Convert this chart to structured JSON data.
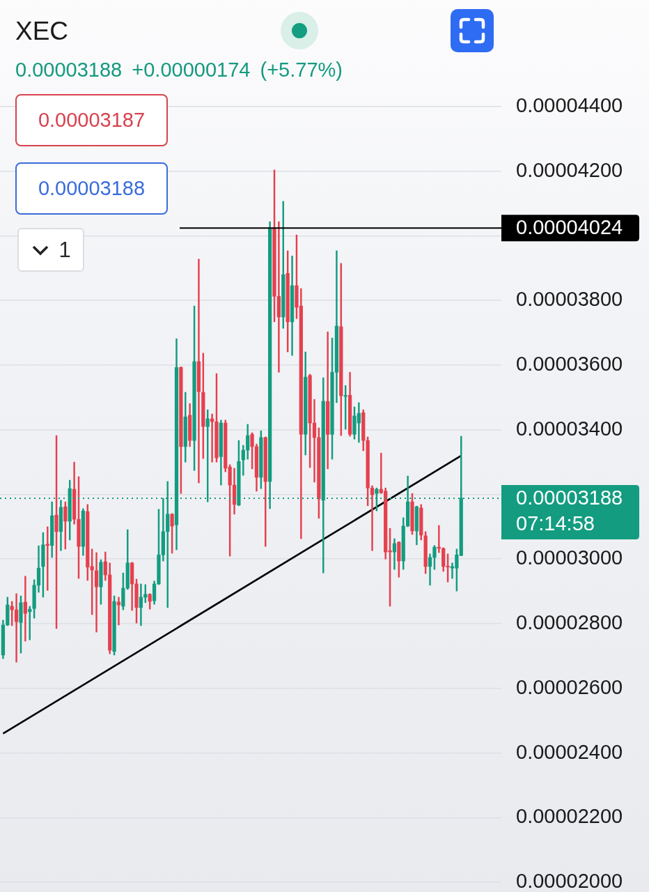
{
  "chart_data": {
    "type": "candlestick",
    "title": "XEC",
    "subtitle": "0.00003188 +0.00000174 (+5.77%)",
    "categories": [
      null,
      null,
      null,
      null,
      null,
      null,
      null,
      null,
      null,
      null,
      null,
      null,
      null,
      null,
      null,
      null,
      null,
      null,
      null,
      null,
      null,
      null,
      null,
      null,
      null,
      null,
      null,
      null,
      null,
      null,
      null,
      null,
      null,
      null,
      null,
      null,
      null,
      null,
      null,
      null,
      null,
      null,
      null,
      null,
      null,
      null,
      null,
      null,
      null,
      null,
      null,
      null,
      null,
      null,
      null,
      null,
      null,
      null,
      null,
      null,
      null,
      null,
      null,
      null,
      null,
      null,
      null,
      null,
      null,
      null,
      null,
      null,
      null,
      null,
      null,
      null,
      null,
      null,
      null,
      null,
      null,
      null,
      null,
      null,
      null,
      null,
      null,
      null,
      null,
      null,
      null,
      null,
      null,
      null,
      null,
      null,
      null,
      null,
      null,
      null,
      null,
      null,
      null,
      null
    ],
    "ohlc": [
      [
        2.703e-05,
        2.811e-05,
        2.692e-05,
        2.796e-05
      ],
      [
        2.796e-05,
        2.882e-05,
        2.794e-05,
        2.858e-05
      ],
      [
        2.854e-05,
        2.869e-05,
        2.794e-05,
        2.843e-05
      ],
      [
        2.843e-05,
        2.893e-05,
        2.681e-05,
        2.806e-05
      ],
      [
        2.804e-05,
        2.886e-05,
        2.709e-05,
        2.865e-05
      ],
      [
        2.867e-05,
        2.947e-05,
        2.746e-05,
        2.832e-05
      ],
      [
        2.837e-05,
        2.854e-05,
        2.75e-05,
        2.845e-05
      ],
      [
        2.847e-05,
        2.936e-05,
        2.817e-05,
        2.919e-05
      ],
      [
        2.919e-05,
        3.041e-05,
        2.897e-05,
        2.972e-05
      ],
      [
        2.977e-05,
        3.082e-05,
        2.882e-05,
        3.044e-05
      ],
      [
        3.046e-05,
        3.1e-05,
        2.903e-05,
        3.042e-05
      ],
      [
        3.042e-05,
        3.177e-05,
        3.005e-05,
        3.134e-05
      ],
      [
        3.136e-05,
        3.382e-05,
        2.785e-05,
        3.085e-05
      ],
      [
        3.085e-05,
        3.182e-05,
        3.026e-05,
        3.16e-05
      ],
      [
        3.162e-05,
        3.177e-05,
        3.031e-05,
        3.117e-05
      ],
      [
        3.117e-05,
        3.244e-05,
        3.059e-05,
        3.218e-05
      ],
      [
        3.216e-05,
        3.3e-05,
        3.108e-05,
        3.123e-05
      ],
      [
        3.123e-05,
        3.255e-05,
        2.94e-05,
        3.039e-05
      ],
      [
        3.039e-05,
        3.156e-05,
        3.011e-05,
        3.149e-05
      ],
      [
        3.147e-05,
        3.169e-05,
        2.934e-05,
        2.975e-05
      ],
      [
        2.977e-05,
        3.031e-05,
        2.828e-05,
        2.966e-05
      ],
      [
        2.964e-05,
        3.02e-05,
        2.774e-05,
        2.914e-05
      ],
      [
        2.914e-05,
        2.998e-05,
        2.86e-05,
        2.99e-05
      ],
      [
        2.992e-05,
        3.022e-05,
        2.934e-05,
        2.951e-05
      ],
      [
        2.951e-05,
        2.988e-05,
        2.707e-05,
        2.718e-05
      ],
      [
        2.714e-05,
        2.886e-05,
        2.703e-05,
        2.869e-05
      ],
      [
        2.867e-05,
        2.882e-05,
        2.796e-05,
        2.858e-05
      ],
      [
        2.854e-05,
        2.957e-05,
        2.843e-05,
        2.91e-05
      ],
      [
        2.91e-05,
        3.091e-05,
        2.906e-05,
        2.988e-05
      ],
      [
        2.988e-05,
        2.99e-05,
        2.841e-05,
        2.923e-05
      ],
      [
        2.923e-05,
        2.938e-05,
        2.802e-05,
        2.85e-05
      ],
      [
        2.85e-05,
        2.923e-05,
        2.794e-05,
        2.882e-05
      ],
      [
        2.882e-05,
        2.921e-05,
        2.865e-05,
        2.891e-05
      ],
      [
        2.891e-05,
        2.893e-05,
        2.845e-05,
        2.869e-05
      ],
      [
        2.871e-05,
        2.932e-05,
        2.86e-05,
        2.923e-05
      ],
      [
        2.923e-05,
        3.154e-05,
        2.921e-05,
        3.013e-05
      ],
      [
        3.013e-05,
        3.188e-05,
        2.994e-05,
        3.085e-05
      ],
      [
        3.085e-05,
        3.24e-05,
        2.85e-05,
        3.139e-05
      ],
      [
        3.139e-05,
        3.141e-05,
        3.018e-05,
        3.102e-05
      ],
      [
        3.106e-05,
        3.682e-05,
        3.029e-05,
        3.593e-05
      ],
      [
        3.593e-05,
        3.595e-05,
        3.203e-05,
        3.348e-05
      ],
      [
        3.348e-05,
        3.516e-05,
        3.3e-05,
        3.44e-05
      ],
      [
        3.445e-05,
        3.481e-05,
        3.348e-05,
        3.367e-05
      ],
      [
        3.367e-05,
        3.783e-05,
        3.274e-05,
        3.611e-05
      ],
      [
        3.611e-05,
        3.928e-05,
        3.236e-05,
        3.518e-05
      ],
      [
        3.516e-05,
        3.637e-05,
        3.311e-05,
        3.41e-05
      ],
      [
        3.41e-05,
        3.462e-05,
        3.177e-05,
        3.434e-05
      ],
      [
        3.434e-05,
        3.449e-05,
        3.3e-05,
        3.425e-05
      ],
      [
        3.425e-05,
        3.574e-05,
        3.3e-05,
        3.313e-05
      ],
      [
        3.317e-05,
        3.43e-05,
        3.229e-05,
        3.421e-05
      ],
      [
        3.421e-05,
        3.43e-05,
        3.27e-05,
        3.281e-05
      ],
      [
        3.285e-05,
        3.292e-05,
        3.009e-05,
        3.229e-05
      ],
      [
        3.229e-05,
        3.281e-05,
        3.139e-05,
        3.169e-05
      ],
      [
        3.167e-05,
        3.367e-05,
        3.165e-05,
        3.302e-05
      ],
      [
        3.307e-05,
        3.352e-05,
        3.259e-05,
        3.337e-05
      ],
      [
        3.337e-05,
        3.417e-05,
        3.309e-05,
        3.382e-05
      ],
      [
        3.386e-05,
        3.391e-05,
        3.279e-05,
        3.348e-05
      ],
      [
        3.348e-05,
        3.356e-05,
        3.21e-05,
        3.253e-05
      ],
      [
        3.253e-05,
        3.397e-05,
        3.218e-05,
        3.376e-05
      ],
      [
        3.376e-05,
        3.378e-05,
        3.039e-05,
        3.24e-05
      ],
      [
        3.24e-05,
        4.044e-05,
        3.156e-05,
        4.024e-05
      ],
      [
        4.024e-05,
        4.204e-05,
        3.734e-05,
        3.813e-05
      ],
      [
        3.813e-05,
        4.044e-05,
        3.578e-05,
        3.749e-05
      ],
      [
        3.749e-05,
        4.107e-05,
        3.714e-05,
        3.88e-05
      ],
      [
        3.884e-05,
        3.954e-05,
        3.641e-05,
        3.734e-05
      ],
      [
        3.734e-05,
        3.938e-05,
        3.63e-05,
        3.846e-05
      ],
      [
        3.846e-05,
        4.003e-05,
        3.744e-05,
        3.779e-05
      ],
      [
        3.783e-05,
        3.837e-05,
        3.063e-05,
        3.386e-05
      ],
      [
        3.386e-05,
        3.641e-05,
        3.322e-05,
        3.563e-05
      ],
      [
        3.568e-05,
        3.572e-05,
        3.283e-05,
        3.421e-05
      ],
      [
        3.421e-05,
        3.494e-05,
        3.238e-05,
        3.376e-05
      ],
      [
        3.376e-05,
        3.406e-05,
        3.126e-05,
        3.186e-05
      ],
      [
        3.182e-05,
        3.561e-05,
        2.957e-05,
        3.488e-05
      ],
      [
        3.488e-05,
        3.703e-05,
        3.279e-05,
        3.386e-05
      ],
      [
        3.386e-05,
        3.684e-05,
        3.309e-05,
        3.578e-05
      ],
      [
        3.578e-05,
        3.954e-05,
        3.484e-05,
        3.721e-05
      ],
      [
        3.719e-05,
        3.915e-05,
        3.382e-05,
        3.505e-05
      ],
      [
        3.503e-05,
        3.537e-05,
        3.402e-05,
        3.505e-05
      ],
      [
        3.507e-05,
        3.578e-05,
        3.38e-05,
        3.386e-05
      ],
      [
        3.386e-05,
        3.471e-05,
        3.371e-05,
        3.443e-05
      ],
      [
        3.421e-05,
        3.484e-05,
        3.361e-05,
        3.451e-05
      ],
      [
        3.453e-05,
        3.462e-05,
        3.335e-05,
        3.367e-05
      ],
      [
        3.367e-05,
        3.378e-05,
        3.165e-05,
        3.22e-05
      ],
      [
        3.22e-05,
        3.227e-05,
        3.026e-05,
        3.199e-05
      ],
      [
        3.203e-05,
        3.22e-05,
        3.149e-05,
        3.216e-05
      ],
      [
        3.216e-05,
        3.328e-05,
        3.203e-05,
        3.205e-05
      ],
      [
        3.21e-05,
        3.22e-05,
        3e-05,
        3.022e-05
      ],
      [
        3.026e-05,
        3.095e-05,
        2.854e-05,
        3.022e-05
      ],
      [
        3.022e-05,
        3.063e-05,
        2.968e-05,
        3.048e-05
      ],
      [
        3.052e-05,
        3.054e-05,
        2.944e-05,
        2.994e-05
      ],
      [
        2.994e-05,
        3.128e-05,
        2.968e-05,
        3.102e-05
      ],
      [
        3.102e-05,
        3.257e-05,
        3.1e-05,
        3.177e-05
      ],
      [
        3.177e-05,
        3.203e-05,
        3.076e-05,
        3.087e-05
      ],
      [
        3.087e-05,
        3.164e-05,
        3.044e-05,
        3.162e-05
      ],
      [
        3.158e-05,
        3.169e-05,
        3.059e-05,
        3.074e-05
      ],
      [
        3.072e-05,
        3.085e-05,
        2.955e-05,
        2.977e-05
      ],
      [
        2.977e-05,
        3.016e-05,
        2.919e-05,
        3.005e-05
      ],
      [
        3.005e-05,
        3.042e-05,
        2.968e-05,
        3.037e-05
      ],
      [
        3.037e-05,
        3.104e-05,
        3.02e-05,
        3.033e-05
      ],
      [
        3.033e-05,
        3.035e-05,
        2.962e-05,
        2.977e-05
      ],
      [
        2.977e-05,
        3.016e-05,
        2.929e-05,
        2.975e-05
      ],
      [
        2.972e-05,
        2.988e-05,
        2.94e-05,
        2.977e-05
      ],
      [
        2.972e-05,
        3.031e-05,
        2.901e-05,
        3.013e-05
      ],
      [
        3.011e-05,
        3.38e-05,
        3.01e-05,
        3.188e-05
      ]
    ],
    "colors": [
      "#139c80",
      "#139c80",
      "#e5404e",
      "#e5404e",
      "#139c80",
      "#e5404e",
      "#139c80",
      "#139c80",
      "#139c80",
      "#139c80",
      "#e5404e",
      "#139c80",
      "#e5404e",
      "#139c80",
      "#e5404e",
      "#139c80",
      "#e5404e",
      "#e5404e",
      "#139c80",
      "#e5404e",
      "#e5404e",
      "#e5404e",
      "#139c80",
      "#e5404e",
      "#e5404e",
      "#139c80",
      "#e5404e",
      "#139c80",
      "#139c80",
      "#e5404e",
      "#e5404e",
      "#139c80",
      "#139c80",
      "#e5404e",
      "#139c80",
      "#139c80",
      "#139c80",
      "#139c80",
      "#e5404e",
      "#139c80",
      "#e5404e",
      "#139c80",
      "#e5404e",
      "#139c80",
      "#e5404e",
      "#e5404e",
      "#139c80",
      "#e5404e",
      "#e5404e",
      "#139c80",
      "#e5404e",
      "#e5404e",
      "#e5404e",
      "#139c80",
      "#139c80",
      "#139c80",
      "#e5404e",
      "#e5404e",
      "#139c80",
      "#e5404e",
      "#139c80",
      "#e5404e",
      "#e5404e",
      "#139c80",
      "#e5404e",
      "#139c80",
      "#e5404e",
      "#e5404e",
      "#139c80",
      "#e5404e",
      "#e5404e",
      "#e5404e",
      "#139c80",
      "#e5404e",
      "#139c80",
      "#139c80",
      "#e5404e",
      "#139c80",
      "#e5404e",
      "#139c80",
      "#139c80",
      "#e5404e",
      "#e5404e",
      "#e5404e",
      "#139c80",
      "#e5404e",
      "#e5404e",
      "#e5404e",
      "#139c80",
      "#e5404e",
      "#139c80",
      "#139c80",
      "#e5404e",
      "#139c80",
      "#e5404e",
      "#e5404e",
      "#139c80",
      "#139c80",
      "#e5404e",
      "#e5404e",
      "#e5404e",
      "#139c80",
      "#139c80",
      "#139c80"
    ],
    "series": [
      {
        "type": "line",
        "color": "#000000",
        "values": [
          2.46e-05,
          null,
          null,
          null,
          null,
          null,
          null,
          null,
          null,
          null,
          null,
          null,
          null,
          null,
          null,
          null,
          null,
          null,
          null,
          null,
          null,
          null,
          null,
          null,
          null,
          null,
          null,
          null,
          null,
          null,
          null,
          null,
          null,
          null,
          null,
          null,
          null,
          null,
          null,
          null,
          null,
          null,
          null,
          null,
          null,
          null,
          null,
          null,
          null,
          null,
          null,
          null,
          null,
          null,
          null,
          null,
          null,
          null,
          null,
          null,
          null,
          null,
          null,
          null,
          null,
          null,
          null,
          null,
          null,
          null,
          null,
          null,
          null,
          null,
          null,
          null,
          null,
          null,
          null,
          null,
          null,
          null,
          null,
          null,
          null,
          null,
          null,
          null,
          null,
          null,
          null,
          null,
          null,
          null,
          null,
          null,
          null,
          null,
          null,
          null,
          null,
          null,
          null,
          3.32e-05
        ]
      }
    ],
    "ylim": [
      2e-05,
      4.4e-05
    ],
    "yticks": [
      {
        "value": 2e-05,
        "label": "0.00002000"
      },
      {
        "value": 2.2e-05,
        "label": "0.00002200"
      },
      {
        "value": 2.4e-05,
        "label": "0.00002400"
      },
      {
        "value": 2.6e-05,
        "label": "0.00002600"
      },
      {
        "value": 2.8e-05,
        "label": "0.00002800"
      },
      {
        "value": 3e-05,
        "label": "0.00003000"
      },
      {
        "value": 3.2e-05,
        "label": null
      },
      {
        "value": 3.4e-05,
        "label": "0.00003400"
      },
      {
        "value": 3.6e-05,
        "label": "0.00003600"
      },
      {
        "value": 3.8e-05,
        "label": "0.00003800"
      },
      {
        "value": 4e-05,
        "label": null
      },
      {
        "value": 4.2e-05,
        "label": "0.00004200"
      },
      {
        "value": 4.4e-05,
        "label": "0.00004400"
      }
    ],
    "grid": "y",
    "tick_labels": "y",
    "ref_lines": [
      {
        "axis": "y",
        "value": 4.024e-05,
        "label": "0.00004024",
        "color": "#000000",
        "line_style": "solid"
      },
      {
        "axis": "y",
        "value": 3.188e-05,
        "label": "0.00003188\n07:14:58",
        "color": "#139c80",
        "line_style": "dotted"
      }
    ],
    "annotations": [
      "0.00003187",
      "0.00003188",
      "1"
    ]
  }
}
